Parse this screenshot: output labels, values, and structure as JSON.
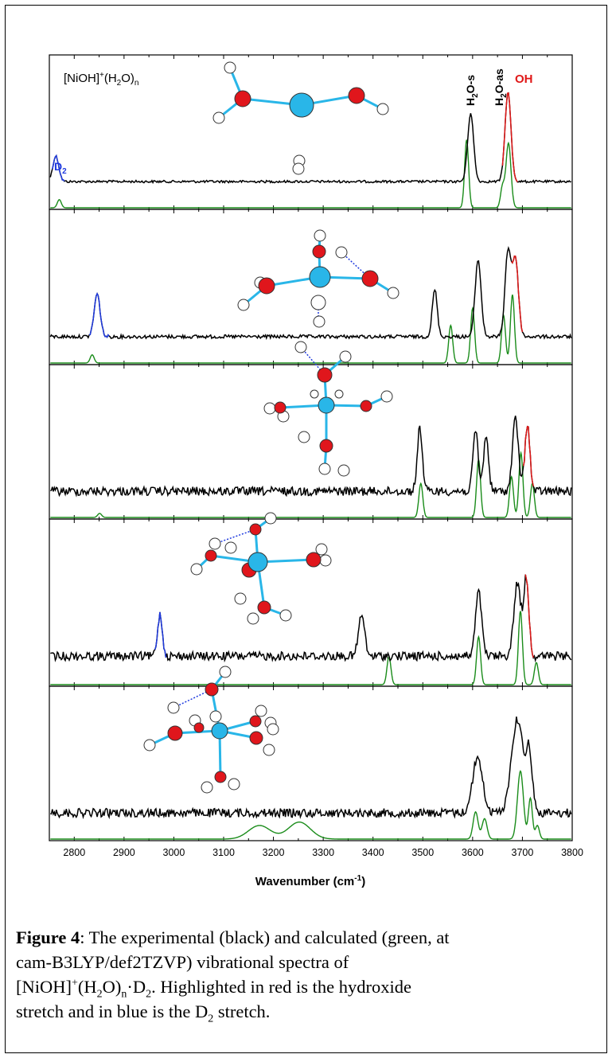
{
  "chart_data": {
    "type": "line",
    "xlabel": "Wavenumber (cm",
    "xlabel_sup": "-1",
    "xlabel_close": ")",
    "xlim": [
      2750,
      3800
    ],
    "x_ticks": [
      "2800",
      "2900",
      "3000",
      "3100",
      "3200",
      "3300",
      "3400",
      "3500",
      "3600",
      "3700",
      "3800"
    ],
    "colors": {
      "experimental": "#000000",
      "calculated": "#1a8c1a",
      "hydroxide": "#e01818",
      "d2": "#1f3adf",
      "ni": "#29b6e8",
      "o": "#e0161c",
      "h": "#ffffff"
    },
    "panel_label": {
      "main": "[NiOH]",
      "sup": "+",
      "mid": "(H",
      "sub2": "2",
      "mid2": "O)",
      "subn": "n"
    },
    "band_labels": {
      "h2o_s_a": "H",
      "h2o_s_sub": "2",
      "h2o_s_b": "O-s",
      "h2o_as_a": "H",
      "h2o_as_sub": "2",
      "h2o_as_b": "O-as",
      "oh": "OH",
      "d2_a": "D",
      "d2_sub": "2"
    },
    "panels": [
      {
        "n": 0,
        "calc_peaks": [
          [
            2770,
            0.12,
            4
          ],
          [
            3588,
            1.0,
            4
          ],
          [
            3660,
            0.3,
            4
          ],
          [
            3672,
            0.95,
            5
          ]
        ],
        "exp_peaks": [
          [
            3596,
            0.8,
            6
          ],
          [
            3671,
            1.05,
            6
          ]
        ],
        "oh_range": [
          3660,
          3690
        ],
        "d2_range": [
          2755,
          2780
        ],
        "d2_peak": [
          2763,
          0.3,
          6
        ]
      },
      {
        "n": 1,
        "calc_peaks": [
          [
            2836,
            0.12,
            4
          ],
          [
            3556,
            0.55,
            4
          ],
          [
            3600,
            0.8,
            4
          ],
          [
            3662,
            0.7,
            4
          ],
          [
            3680,
            1.0,
            4
          ]
        ],
        "exp_peaks": [
          [
            3524,
            0.55,
            5
          ],
          [
            3611,
            0.9,
            6
          ],
          [
            3671,
            1.0,
            6
          ],
          [
            3686,
            0.9,
            6
          ]
        ],
        "oh_range": [
          3678,
          3700
        ],
        "d2_range": [
          2830,
          2870
        ],
        "d2_peak": [
          2846,
          0.5,
          6
        ]
      },
      {
        "n": 2,
        "calc_peaks": [
          [
            2851,
            0.06,
            4
          ],
          [
            3496,
            0.5,
            4
          ],
          [
            3612,
            0.85,
            4
          ],
          [
            3678,
            0.6,
            4
          ],
          [
            3697,
            0.95,
            4
          ],
          [
            3720,
            0.5,
            4
          ]
        ],
        "exp_peaks": [
          [
            3494,
            0.75,
            5
          ],
          [
            3606,
            0.72,
            5
          ],
          [
            3627,
            0.65,
            5
          ],
          [
            3686,
            0.85,
            6
          ],
          [
            3710,
            0.8,
            5
          ]
        ],
        "oh_range": [
          3701,
          3722
        ],
        "d2_range": null,
        "d2_peak": null
      },
      {
        "n": 3,
        "calc_peaks": [
          [
            3432,
            0.38,
            4
          ],
          [
            3612,
            0.65,
            4
          ],
          [
            3696,
            1.0,
            4
          ],
          [
            3728,
            0.3,
            4
          ]
        ],
        "exp_peaks": [
          [
            3377,
            0.45,
            6
          ],
          [
            3612,
            0.7,
            6
          ],
          [
            3690,
            0.8,
            7
          ],
          [
            3708,
            0.85,
            5
          ]
        ],
        "oh_range": [
          3706,
          3722
        ],
        "d2_range": [
          2962,
          2984
        ],
        "d2_peak": [
          2972,
          0.45,
          5
        ]
      },
      {
        "n": 4,
        "calc_peaks": [
          [
            3172,
            0.2,
            22
          ],
          [
            3252,
            0.25,
            22
          ],
          [
            3606,
            0.4,
            5
          ],
          [
            3624,
            0.3,
            5
          ],
          [
            3696,
            1.0,
            6
          ],
          [
            3716,
            0.6,
            4
          ],
          [
            3730,
            0.2,
            4
          ]
        ],
        "exp_peaks": [
          [
            3610,
            0.65,
            10
          ],
          [
            3690,
            1.1,
            12
          ],
          [
            3714,
            0.65,
            6
          ]
        ],
        "oh_range": null,
        "d2_range": null,
        "d2_peak": null
      }
    ]
  },
  "caption": {
    "bold": "Figure 4",
    "l1": ": The experimental (black) and calculated (green, at",
    "l2": "cam-B3LYP/def2TZVP) vibrational spectra of",
    "l3a": "[NiOH]",
    "l3sup": "+",
    "l3b": "(H",
    "l3sub2": "2",
    "l3c": "O)",
    "l3subn": "n",
    "l3d": "·D",
    "l3sub2b": "2",
    "l3e": ".  Highlighted in red is the hydroxide",
    "l4a": "stretch and in blue is the D",
    "l4sub": "2",
    "l4b": " stretch."
  }
}
